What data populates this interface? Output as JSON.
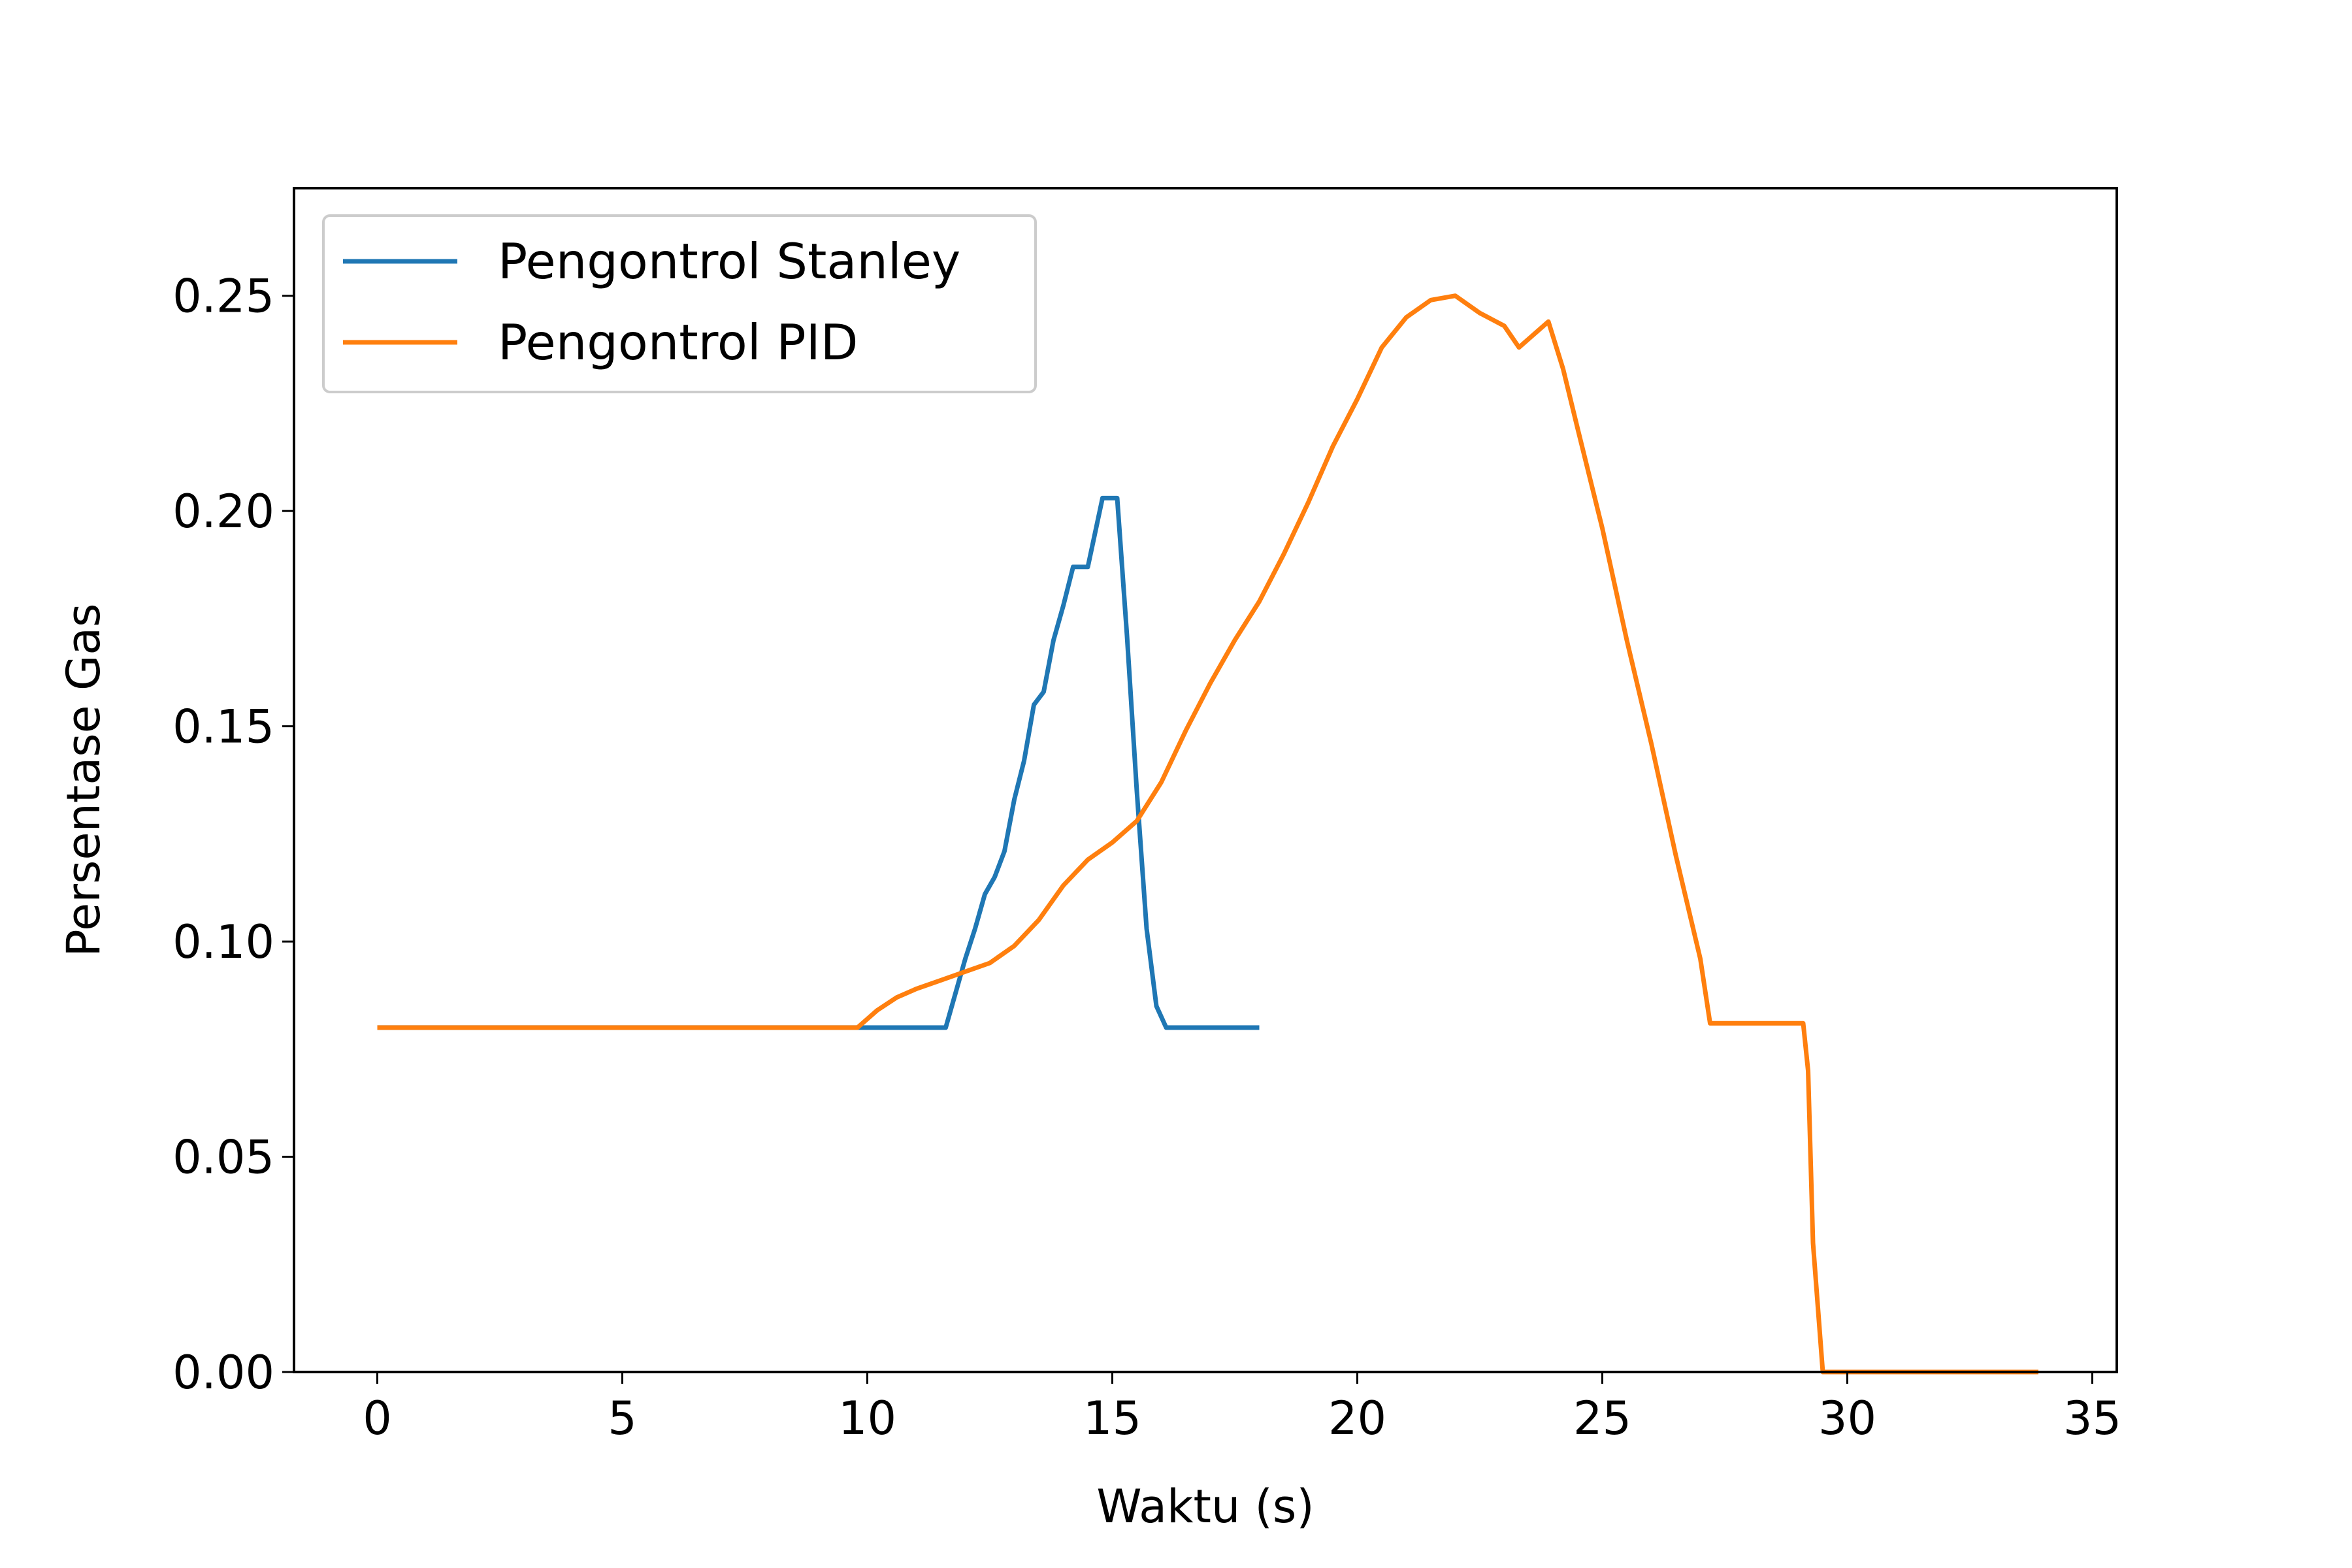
{
  "chart_data": {
    "type": "line",
    "title": "",
    "xlabel": "Waktu (s)",
    "ylabel": "Persentase Gas",
    "xlim": [
      -1.7,
      35.5
    ],
    "ylim": [
      0,
      0.275
    ],
    "xticks": [
      0,
      5,
      10,
      15,
      20,
      25,
      30,
      35
    ],
    "xtick_labels": [
      "0",
      "5",
      "10",
      "15",
      "20",
      "25",
      "30",
      "35"
    ],
    "yticks": [
      0,
      0.05,
      0.1,
      0.15,
      0.2,
      0.25
    ],
    "ytick_labels": [
      "0.00",
      "0.05",
      "0.10",
      "0.15",
      "0.20",
      "0.25"
    ],
    "grid": false,
    "legend_position": "top-left",
    "series": [
      {
        "name": "Pengontrol Stanley",
        "color": "#1f77b4",
        "x": [
          0,
          11.6,
          11.8,
          12.0,
          12.2,
          12.4,
          12.6,
          12.8,
          13.0,
          13.2,
          13.4,
          13.6,
          13.8,
          14.0,
          14.2,
          14.5,
          14.8,
          15.1,
          15.3,
          15.5,
          15.7,
          15.9,
          16.1,
          16.3,
          18.0
        ],
        "y": [
          0.08,
          0.08,
          0.088,
          0.096,
          0.103,
          0.111,
          0.115,
          0.121,
          0.133,
          0.142,
          0.155,
          0.158,
          0.17,
          0.178,
          0.187,
          0.187,
          0.203,
          0.203,
          0.171,
          0.135,
          0.103,
          0.085,
          0.08,
          0.08,
          0.08
        ]
      },
      {
        "name": "Pengontrol PID",
        "color": "#ff7f0e",
        "x": [
          0,
          9.8,
          10.2,
          10.6,
          11.0,
          11.5,
          12.0,
          12.5,
          13.0,
          13.5,
          14.0,
          14.5,
          15.0,
          15.5,
          16.0,
          16.5,
          17.0,
          17.5,
          18.0,
          18.5,
          19.0,
          19.5,
          20.0,
          20.5,
          21.0,
          21.5,
          22.0,
          22.5,
          23.0,
          23.3,
          23.6,
          23.9,
          24.2,
          24.5,
          25.0,
          25.5,
          26.0,
          26.5,
          27.0,
          27.2,
          27.5,
          28.0,
          28.5,
          29.1,
          29.2,
          29.3,
          29.5,
          33.9
        ],
        "y": [
          0.08,
          0.08,
          0.084,
          0.087,
          0.089,
          0.091,
          0.093,
          0.095,
          0.099,
          0.105,
          0.113,
          0.119,
          0.123,
          0.128,
          0.137,
          0.149,
          0.16,
          0.17,
          0.179,
          0.19,
          0.202,
          0.215,
          0.226,
          0.238,
          0.245,
          0.249,
          0.25,
          0.246,
          0.243,
          0.238,
          0.241,
          0.244,
          0.233,
          0.219,
          0.196,
          0.17,
          0.146,
          0.12,
          0.096,
          0.081,
          0.081,
          0.081,
          0.081,
          0.081,
          0.07,
          0.03,
          0.0,
          0.0
        ]
      }
    ]
  }
}
